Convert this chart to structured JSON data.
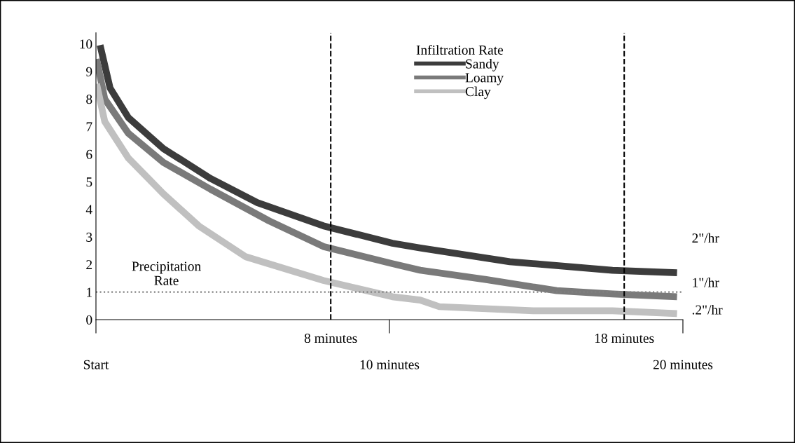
{
  "chart_data": {
    "type": "line",
    "legend_title": "Infiltration Rate",
    "series": [
      {
        "name": "Sandy",
        "color": "#3c3c3c",
        "x": [
          0.14,
          0.48,
          1.1,
          2.3,
          3.9,
          5.5,
          7.75,
          10.1,
          11.05,
          14.1,
          17.6,
          19.8
        ],
        "values": [
          9.95,
          8.4,
          7.33,
          6.2,
          5.12,
          4.24,
          3.4,
          2.77,
          2.6,
          2.1,
          1.79,
          1.7
        ]
      },
      {
        "name": "Loamy",
        "color": "#7a7a7a",
        "x": [
          0.02,
          0.3,
          1.1,
          2.3,
          3.9,
          5.9,
          7.75,
          10.1,
          11.05,
          13.3,
          15.7,
          17.6,
          19.8
        ],
        "values": [
          9.45,
          8.0,
          6.76,
          5.7,
          4.73,
          3.58,
          2.65,
          2.03,
          1.79,
          1.45,
          1.05,
          0.93,
          0.83
        ]
      },
      {
        "name": "Clay",
        "color": "#c0c0c0",
        "x": [
          0.02,
          0.3,
          1.1,
          2.3,
          3.5,
          5.1,
          7.75,
          10.1,
          11.05,
          11.7,
          14.9,
          17.6,
          19.8
        ],
        "values": [
          8.55,
          7.18,
          5.86,
          4.56,
          3.4,
          2.28,
          1.42,
          0.83,
          0.71,
          0.47,
          0.32,
          0.32,
          0.22
        ]
      }
    ],
    "xlim": [
      0,
      20
    ],
    "xticks": [
      {
        "value": 0,
        "label": "Start"
      },
      {
        "value": 10,
        "label": "10 minutes"
      },
      {
        "value": 20,
        "label": "20 minutes"
      }
    ],
    "ylim": [
      0,
      10.4
    ],
    "yticks": [
      0,
      1,
      2,
      3,
      4,
      5,
      6,
      7,
      8,
      9,
      10
    ],
    "ref_lines": [
      {
        "axis": "y",
        "value": 1,
        "label": "Precipitation\nRate",
        "color": "#808080",
        "line_style": "dotted"
      },
      {
        "axis": "x",
        "value": 8,
        "label": "8 minutes",
        "color": "#000000",
        "line_style": "dashed"
      },
      {
        "axis": "x",
        "value": 18,
        "label": "18 minutes",
        "color": "#000000",
        "line_style": "dashed"
      }
    ],
    "annotations": [
      "2\"/hr",
      "1\"/hr",
      ".2\"/hr"
    ],
    "legend": "top",
    "grid": false,
    "line_style": "solid"
  }
}
